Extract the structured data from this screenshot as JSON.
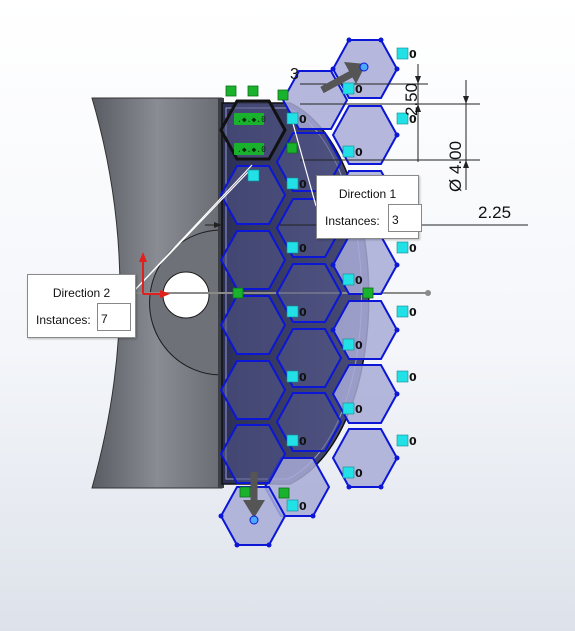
{
  "dialogs": {
    "direction1": {
      "title": "Direction 1",
      "instances_label": "Instances:",
      "instances_value": "3"
    },
    "direction2": {
      "title": "Direction 2",
      "instances_label": "Instances:",
      "instances_value": "7"
    }
  },
  "dimensions": {
    "height_top": "2.50",
    "diameter": "Ø 4.00",
    "offset": "2.25",
    "partial_top": "3"
  },
  "glyphs": {
    "relation_zero": "0"
  },
  "colors": {
    "sketch_blue": "#0b16d6",
    "hex_fill": "#a8acd6",
    "body_gray": "#7a7c84",
    "body_dark": "#4a4c55",
    "relation_green": "#19b22c",
    "relation_cyan": "#21e0e6",
    "arrow_gray": "#6b6b6b",
    "axis_red": "#e0201c"
  },
  "icons": [
    "relation-fix-icon",
    "relation-coincident-icon",
    "pattern-arrow-icon",
    "origin-triad-icon"
  ]
}
